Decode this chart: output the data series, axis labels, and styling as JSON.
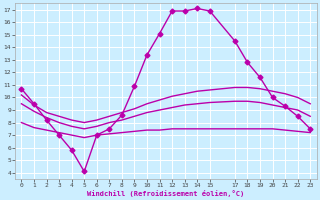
{
  "title": "",
  "xlabel": "Windchill (Refroidissement éolien,°C)",
  "background_color": "#cceeff",
  "grid_color": "#ffffff",
  "line_color": "#bb00aa",
  "xlim": [
    -0.5,
    23.5
  ],
  "ylim": [
    3.5,
    17.5
  ],
  "xticks": [
    0,
    1,
    2,
    3,
    4,
    5,
    6,
    7,
    8,
    9,
    10,
    11,
    12,
    13,
    14,
    15,
    17,
    18,
    19,
    20,
    21,
    22,
    23
  ],
  "yticks": [
    4,
    5,
    6,
    7,
    8,
    9,
    10,
    11,
    12,
    13,
    14,
    15,
    16,
    17
  ],
  "series": [
    {
      "x": [
        0,
        1,
        2,
        3,
        4,
        5,
        6,
        7,
        8,
        9,
        10,
        11,
        12,
        13,
        14,
        15,
        17,
        18,
        19,
        20,
        21,
        22,
        23
      ],
      "y": [
        10.7,
        9.5,
        8.2,
        7.0,
        5.8,
        4.1,
        7.0,
        7.5,
        8.6,
        10.9,
        13.4,
        15.1,
        16.9,
        16.9,
        17.1,
        16.9,
        14.5,
        12.8,
        11.6,
        10.0,
        9.3,
        8.5,
        7.5
      ],
      "marker": "D",
      "markersize": 2.5,
      "linewidth": 1.0,
      "has_marker": true
    },
    {
      "x": [
        0,
        1,
        2,
        3,
        4,
        5,
        6,
        7,
        8,
        9,
        10,
        11,
        12,
        13,
        14,
        15,
        17,
        18,
        19,
        20,
        21,
        22,
        23
      ],
      "y": [
        10.2,
        9.4,
        8.8,
        8.5,
        8.2,
        8.0,
        8.2,
        8.5,
        8.8,
        9.1,
        9.5,
        9.8,
        10.1,
        10.3,
        10.5,
        10.6,
        10.8,
        10.8,
        10.7,
        10.5,
        10.3,
        10.0,
        9.5
      ],
      "marker": null,
      "markersize": 0,
      "linewidth": 1.0,
      "has_marker": false
    },
    {
      "x": [
        0,
        1,
        2,
        3,
        4,
        5,
        6,
        7,
        8,
        9,
        10,
        11,
        12,
        13,
        14,
        15,
        17,
        18,
        19,
        20,
        21,
        22,
        23
      ],
      "y": [
        9.5,
        8.9,
        8.4,
        8.0,
        7.7,
        7.5,
        7.7,
        8.0,
        8.2,
        8.5,
        8.8,
        9.0,
        9.2,
        9.4,
        9.5,
        9.6,
        9.7,
        9.7,
        9.6,
        9.4,
        9.2,
        9.0,
        8.5
      ],
      "marker": null,
      "markersize": 0,
      "linewidth": 1.0,
      "has_marker": false
    },
    {
      "x": [
        0,
        1,
        2,
        3,
        4,
        5,
        6,
        7,
        8,
        9,
        10,
        11,
        12,
        13,
        14,
        15,
        17,
        18,
        19,
        20,
        21,
        22,
        23
      ],
      "y": [
        8.0,
        7.6,
        7.4,
        7.2,
        7.0,
        6.8,
        7.0,
        7.1,
        7.2,
        7.3,
        7.4,
        7.4,
        7.5,
        7.5,
        7.5,
        7.5,
        7.5,
        7.5,
        7.5,
        7.5,
        7.4,
        7.3,
        7.2
      ],
      "marker": null,
      "markersize": 0,
      "linewidth": 1.0,
      "has_marker": false
    }
  ]
}
